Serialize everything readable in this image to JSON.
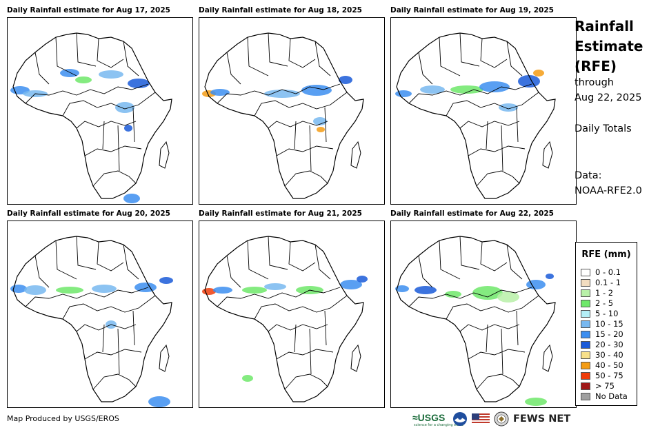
{
  "figure": {
    "title": "Rainfall Estimate (RFE)",
    "title_lines": [
      "Rainfall",
      "Estimate",
      "(RFE)"
    ],
    "through_lines": [
      "through",
      "Aug 22, 2025"
    ],
    "period": "Daily Totals",
    "data_lines": [
      "Data:",
      "NOAA-RFE2.0"
    ]
  },
  "panels": [
    {
      "title": "Daily Rainfall estimate for Aug 17, 2025",
      "date": "Aug 17, 2025"
    },
    {
      "title": "Daily Rainfall estimate for Aug 18, 2025",
      "date": "Aug 18, 2025"
    },
    {
      "title": "Daily Rainfall estimate for Aug 19, 2025",
      "date": "Aug 19, 2025"
    },
    {
      "title": "Daily Rainfall estimate for Aug 20, 2025",
      "date": "Aug 20, 2025"
    },
    {
      "title": "Daily Rainfall estimate for Aug 21, 2025",
      "date": "Aug 21, 2025"
    },
    {
      "title": "Daily Rainfall estimate for Aug 22, 2025",
      "date": "Aug 22, 2025"
    }
  ],
  "legend": {
    "title": "RFE (mm)",
    "items": [
      {
        "label": "0 - 0.1",
        "color": "#ffffff"
      },
      {
        "label": "0.1 - 1",
        "color": "#f2dcc0"
      },
      {
        "label": "1 - 2",
        "color": "#b8f0a8"
      },
      {
        "label": "2 - 5",
        "color": "#6ee86a"
      },
      {
        "label": "5 - 10",
        "color": "#b4eef6"
      },
      {
        "label": "10 - 15",
        "color": "#78b8f0"
      },
      {
        "label": "15 - 20",
        "color": "#3c8ef0"
      },
      {
        "label": "20 - 30",
        "color": "#1a5ad8"
      },
      {
        "label": "30 - 40",
        "color": "#f8e08a"
      },
      {
        "label": "40 - 50",
        "color": "#f49c14"
      },
      {
        "label": "50 - 75",
        "color": "#f03c0a"
      },
      {
        "label": "> 75",
        "color": "#a01818"
      },
      {
        "label": "No Data",
        "color": "#a0a0a0"
      }
    ]
  },
  "footer": {
    "credit": "Map Produced by USGS/EROS",
    "usgs_logo": "≈USGS",
    "usgs_tagline": "science for a changing world",
    "fews_net": "FEWS NET"
  }
}
